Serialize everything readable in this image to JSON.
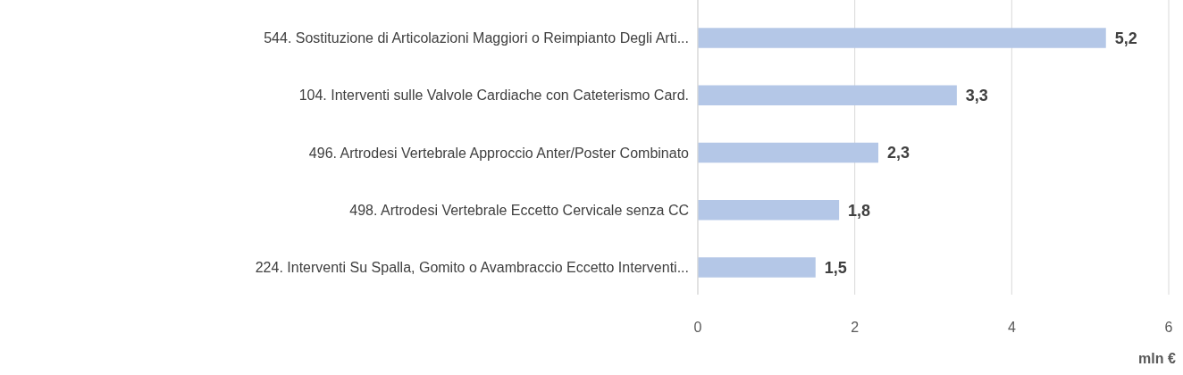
{
  "chart_data": {
    "type": "bar",
    "orientation": "horizontal",
    "categories": [
      "544. Sostituzione di Articolazioni Maggiori o Reimpianto Degli Arti...",
      "104. Interventi sulle Valvole Cardiache con Cateterismo Card.",
      "496. Artrodesi Vertebrale Approccio Anter/Poster Combinato",
      "498. Artrodesi Vertebrale Eccetto Cervicale senza CC",
      "224. Interventi Su Spalla, Gomito o Avambraccio Eccetto Interventi..."
    ],
    "values": [
      5.2,
      3.3,
      2.3,
      1.8,
      1.5
    ],
    "value_labels": [
      "5,2",
      "3,3",
      "2,3",
      "1,8",
      "1,5"
    ],
    "color": "#b4c7e7",
    "xlim": [
      0,
      6
    ],
    "xticks": [
      0,
      2,
      4,
      6
    ],
    "grid": "x",
    "xlabel": "mln €"
  }
}
